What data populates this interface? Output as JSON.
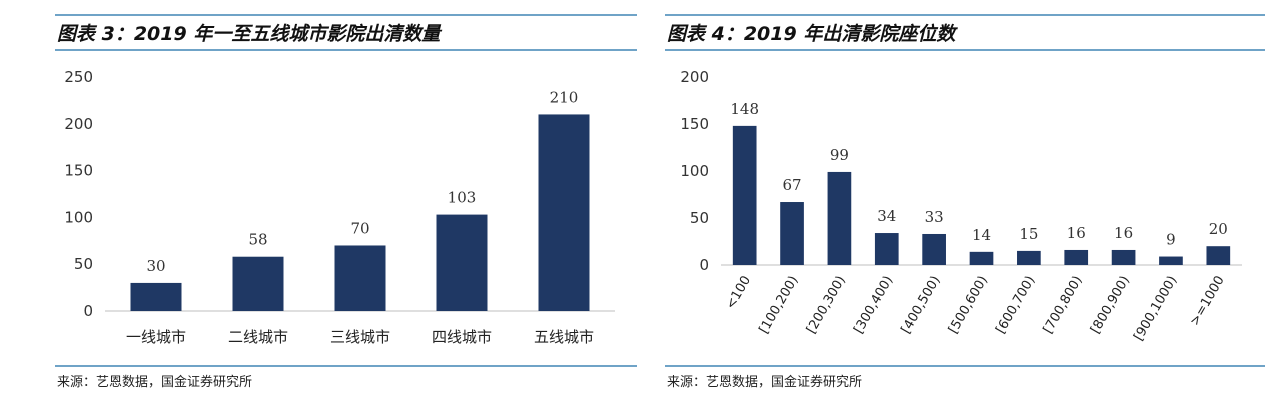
{
  "charts": [
    {
      "title": "图表 3：2019 年一至五线城市影院出清数量",
      "source": "来源：艺恩数据，国金证券研究所",
      "chart_data": {
        "type": "bar",
        "title": "图表 3：2019 年一至五线城市影院出清数量",
        "categories": [
          "一线城市",
          "二线城市",
          "三线城市",
          "四线城市",
          "五线城市"
        ],
        "values": [
          30,
          58,
          70,
          103,
          210
        ],
        "yticks": [
          "0",
          "50",
          "100",
          "150",
          "200",
          "250"
        ],
        "ylim": [
          0,
          250
        ],
        "xlabel": "",
        "ylabel": "",
        "grid": false,
        "bar_color": "#1f3864"
      }
    },
    {
      "title": "图表 4：2019 年出清影院座位数",
      "source": "来源：艺恩数据，国金证券研究所",
      "chart_data": {
        "type": "bar",
        "title": "图表 4：2019 年出清影院座位数",
        "categories": [
          "<100",
          "[100,200)",
          "[200,300)",
          "[300,400)",
          "[400,500)",
          "[500,600)",
          "[600,700)",
          "[700,800)",
          "[800,900)",
          "[900,1000)",
          ">=1000"
        ],
        "values": [
          148,
          67,
          99,
          34,
          33,
          14,
          15,
          16,
          16,
          9,
          20
        ],
        "yticks": [
          "0",
          "50",
          "100",
          "150",
          "200"
        ],
        "ylim": [
          0,
          200
        ],
        "xlabel": "",
        "ylabel": "",
        "grid": false,
        "bar_color": "#1f3864"
      }
    }
  ],
  "colors": {
    "rule": "#6fa3c7",
    "bar": "#1f3864"
  }
}
